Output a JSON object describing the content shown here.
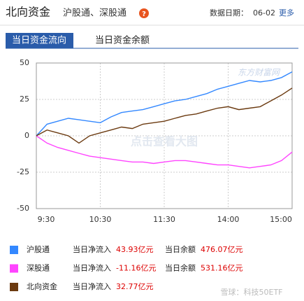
{
  "header": {
    "title": "北向资金",
    "subtitle": "沪股通、深股通",
    "help": "?",
    "date_label": "数据日期：",
    "date": "06-02",
    "more": "更多"
  },
  "tabs": [
    "当日资金流向",
    "当日资金余额"
  ],
  "watermarks": {
    "top": "东方财富网",
    "middle": "点击查看大图",
    "bottom": "雪球：科技50ETF"
  },
  "chart_data": {
    "type": "line",
    "x": [
      0,
      10,
      20,
      30,
      40,
      50,
      60,
      70,
      80,
      90,
      100,
      110,
      120,
      130,
      140,
      150,
      160,
      170,
      180,
      190,
      200,
      210,
      220,
      230,
      240
    ],
    "xlim": [
      0,
      240
    ],
    "xticks": [
      {
        "value": 0,
        "label": "9:30"
      },
      {
        "value": 60,
        "label": "10:30"
      },
      {
        "value": 120,
        "label": "11:30"
      },
      {
        "value": 180,
        "label": "14:00"
      },
      {
        "value": 240,
        "label": "15:00"
      }
    ],
    "ylim": [
      -50,
      50
    ],
    "yticks": [
      50,
      25,
      0,
      -25,
      -50
    ],
    "grid": true,
    "series": [
      {
        "name": "沪股通",
        "color": "#3388ff",
        "values": [
          0,
          8,
          10,
          12,
          11,
          10,
          9,
          13,
          16,
          17,
          18,
          20,
          22,
          24,
          25,
          27,
          29,
          32,
          34,
          36,
          38,
          37,
          38,
          40,
          43.93
        ]
      },
      {
        "name": "深股通",
        "color": "#ff44ff",
        "values": [
          0,
          -5,
          -8,
          -10,
          -12,
          -14,
          -15,
          -16,
          -17,
          -18,
          -18,
          -19,
          -18,
          -17,
          -17,
          -18,
          -19,
          -20,
          -20,
          -21,
          -22,
          -21,
          -20,
          -17,
          -11.16
        ]
      },
      {
        "name": "北向资金",
        "color": "#6b3a10",
        "values": [
          0,
          4,
          2,
          0,
          -5,
          0,
          2,
          4,
          6,
          5,
          8,
          9,
          10,
          12,
          14,
          15,
          17,
          19,
          20,
          18,
          19,
          20,
          24,
          28,
          32.77
        ]
      }
    ]
  },
  "legend_rows": [
    {
      "inflow_label": "当日净流入",
      "inflow": "43.93亿元",
      "balance_label": "当日余额",
      "balance": "476.07亿元"
    },
    {
      "inflow_label": "当日净流入",
      "inflow": "-11.16亿元",
      "balance_label": "当日余额",
      "balance": "531.16亿元"
    },
    {
      "inflow_label": "当日净流入",
      "inflow": "32.77亿元"
    }
  ]
}
